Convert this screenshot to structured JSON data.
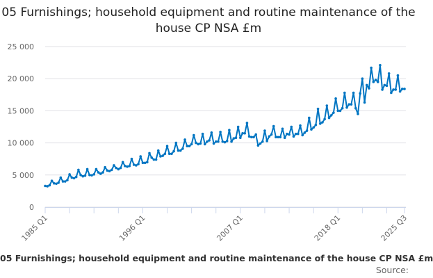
{
  "chart_data": {
    "type": "line",
    "title": "05 Furnishings; household equipment and routine maintenance of the house CP NSA £m",
    "xlabel": "",
    "ylabel": "",
    "ylim": [
      0,
      25000
    ],
    "yticks": [
      "0",
      "5 000",
      "10 000",
      "15 000",
      "20 000",
      "25 000"
    ],
    "xtick_labels": [
      "1985 Q1",
      "1996 Q1",
      "2007 Q1",
      "2018 Q1",
      "2025 Q3"
    ],
    "start_year": 1985,
    "color": "#0075c2",
    "grid": true,
    "values": [
      3300,
      3250,
      3400,
      4100,
      3700,
      3650,
      3800,
      4600,
      4000,
      4000,
      4200,
      5100,
      4600,
      4500,
      4700,
      5800,
      5000,
      4800,
      4900,
      5900,
      5000,
      4950,
      5100,
      5900,
      5400,
      5200,
      5400,
      6200,
      5700,
      5600,
      5800,
      6500,
      6100,
      5900,
      6100,
      7000,
      6400,
      6300,
      6400,
      7500,
      6600,
      6500,
      6700,
      7900,
      6900,
      6900,
      7000,
      8400,
      7700,
      7400,
      7400,
      8800,
      7900,
      8000,
      8300,
      9500,
      8300,
      8300,
      8700,
      10000,
      8800,
      8800,
      9100,
      10500,
      9500,
      9500,
      9800,
      11200,
      10000,
      9800,
      9900,
      11400,
      9800,
      10200,
      10400,
      11600,
      9900,
      10200,
      10200,
      11700,
      10200,
      10100,
      10300,
      12000,
      10200,
      10700,
      10800,
      12500,
      10800,
      11500,
      11500,
      13100,
      11000,
      10900,
      10900,
      11300,
      9600,
      9900,
      10200,
      11900,
      10300,
      11000,
      11300,
      12600,
      10900,
      10900,
      10900,
      12200,
      10800,
      11400,
      11300,
      12500,
      11000,
      11400,
      11400,
      12700,
      11200,
      11600,
      11900,
      13900,
      12100,
      12400,
      12800,
      15300,
      13000,
      13200,
      13700,
      15800,
      13900,
      14300,
      14700,
      16900,
      15000,
      15000,
      15400,
      17800,
      15500,
      16000,
      16000,
      17800,
      15400,
      14500,
      17700,
      20000,
      16300,
      19000,
      18500,
      21700,
      19500,
      19800,
      19500,
      22100,
      18300,
      19000,
      18900,
      20800,
      17800,
      18300,
      18300,
      20500,
      18000,
      18400,
      18400
    ]
  },
  "caption": "05 Furnishings; household equipment and routine maintenance of the house CP NSA £m",
  "source_label": "Source:"
}
